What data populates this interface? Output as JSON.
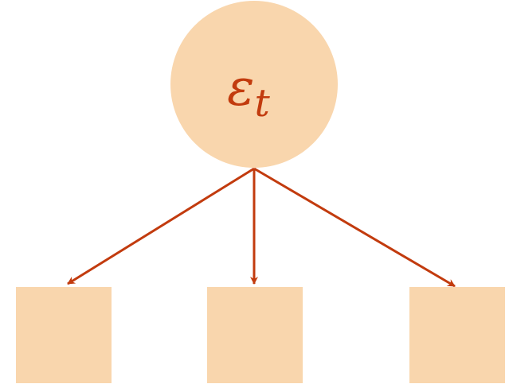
{
  "diagram": {
    "root": {
      "symbol": "ε",
      "subscript": "t"
    },
    "children": [
      {
        "id": "left"
      },
      {
        "id": "middle"
      },
      {
        "id": "right"
      }
    ],
    "colors": {
      "node_fill": "#f9d6ad",
      "accent": "#c23b0e",
      "background": "#ffffff"
    }
  }
}
